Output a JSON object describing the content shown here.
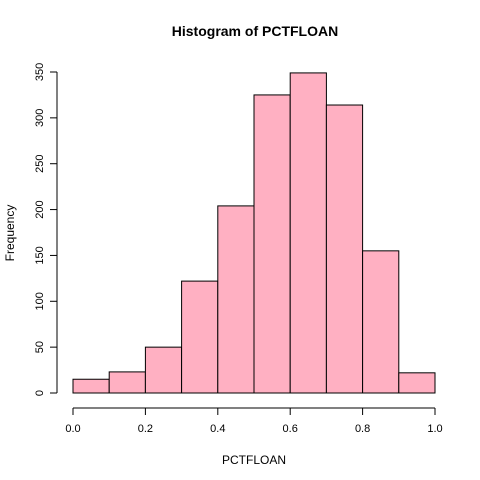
{
  "chart_data": {
    "type": "bar",
    "title": "Histogram of PCTFLOAN",
    "xlabel": "PCTFLOAN",
    "ylabel": "Frequency",
    "bin_edges": [
      0.0,
      0.1,
      0.2,
      0.3,
      0.4,
      0.5,
      0.6,
      0.7,
      0.8,
      0.9,
      1.0
    ],
    "values": [
      15,
      23,
      50,
      122,
      204,
      325,
      349,
      314,
      155,
      22
    ],
    "xlim": [
      0.0,
      1.0
    ],
    "ylim": [
      0,
      350
    ],
    "xticks": [
      "0.0",
      "0.2",
      "0.4",
      "0.6",
      "0.8",
      "1.0"
    ],
    "xtick_values": [
      0.0,
      0.2,
      0.4,
      0.6,
      0.8,
      1.0
    ],
    "yticks": [
      "0",
      "50",
      "100",
      "150",
      "200",
      "250",
      "300",
      "350"
    ],
    "ytick_values": [
      0,
      50,
      100,
      150,
      200,
      250,
      300,
      350
    ],
    "bar_color": "#ffb0c2",
    "edge_color": "#000000",
    "grid": false,
    "legend": "none"
  }
}
